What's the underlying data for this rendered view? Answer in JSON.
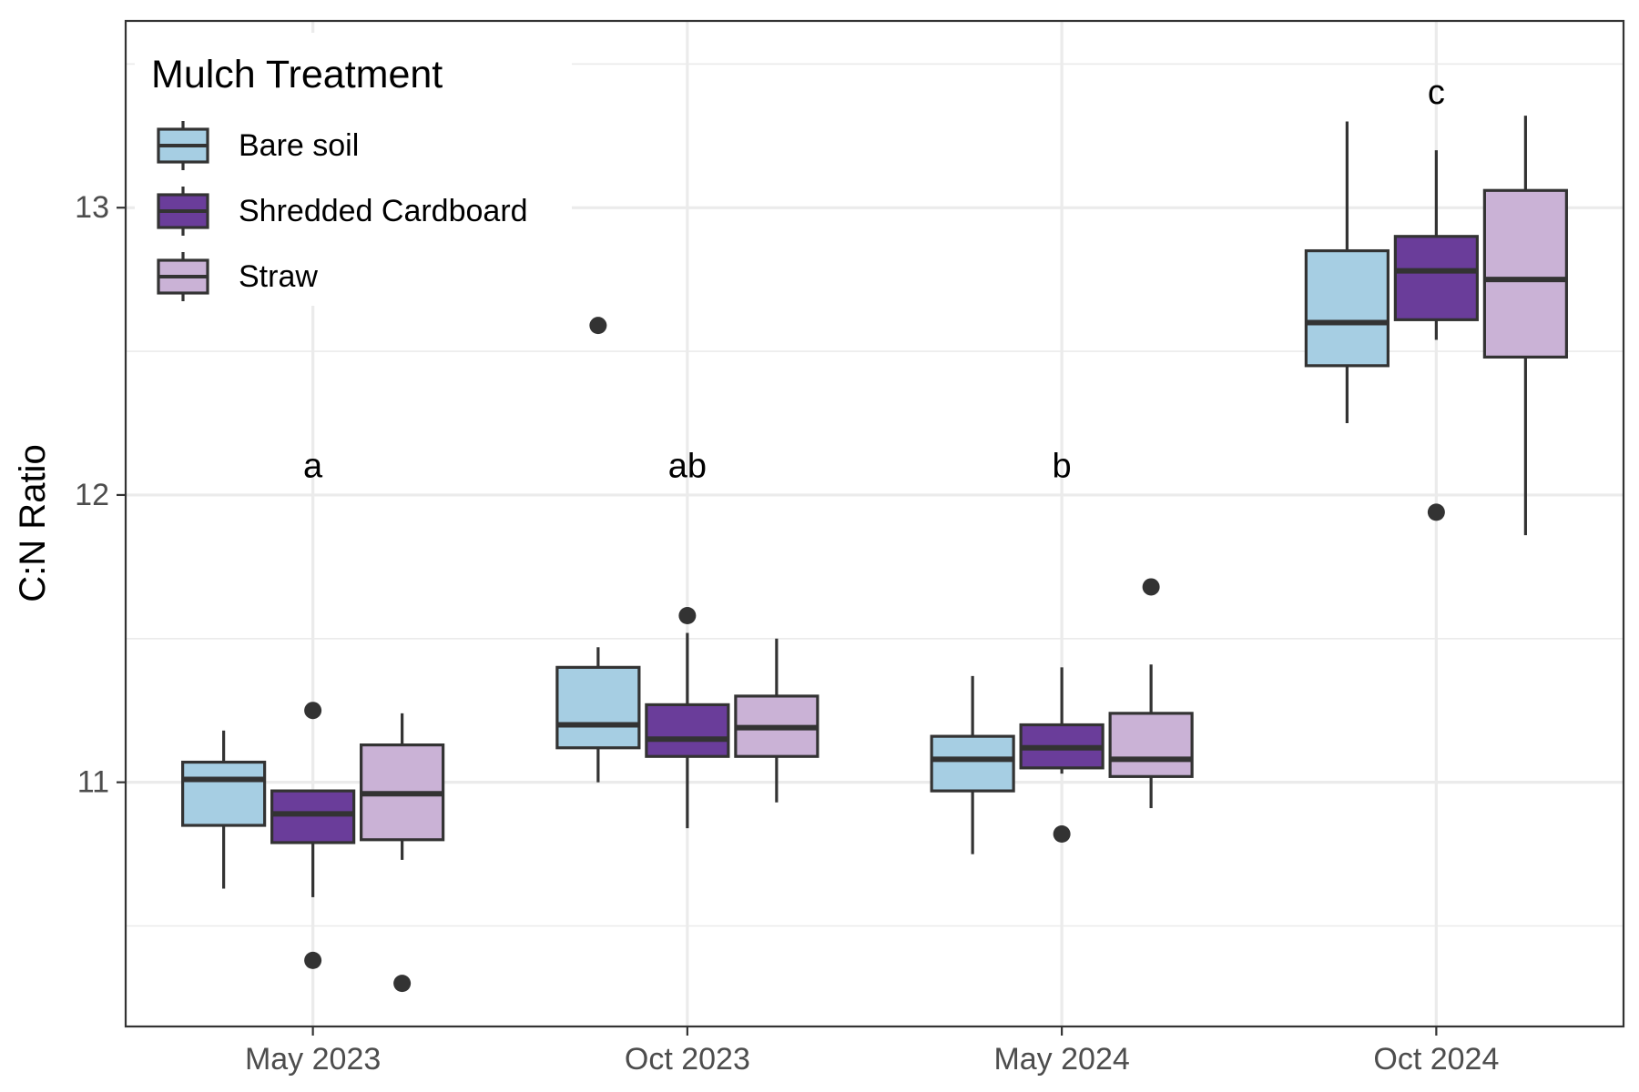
{
  "chart_data": {
    "type": "box",
    "title": "",
    "xlabel": "",
    "ylabel": "C:N Ratio",
    "categories": [
      "May 2023",
      "Oct 2023",
      "May 2024",
      "Oct 2024"
    ],
    "ylim": [
      10.15,
      13.65
    ],
    "yticks": [
      11,
      12,
      13
    ],
    "grid": true,
    "legend": {
      "title": "Mulch Treatment",
      "position": "top-left",
      "entries": [
        "Bare soil",
        "Shredded Cardboard",
        "Straw"
      ]
    },
    "colors": {
      "Bare soil": "#a6cee3",
      "Shredded Cardboard": "#6a3d9a",
      "Straw": "#cab2d6",
      "outline": "#333333"
    },
    "series": [
      {
        "name": "Bare soil",
        "boxes": [
          {
            "q1": 10.85,
            "median": 11.01,
            "q3": 11.07,
            "whisker_low": 10.63,
            "whisker_high": 11.18,
            "outliers": []
          },
          {
            "q1": 11.12,
            "median": 11.2,
            "q3": 11.4,
            "whisker_low": 11.0,
            "whisker_high": 11.47,
            "outliers": [
              12.59
            ]
          },
          {
            "q1": 10.97,
            "median": 11.08,
            "q3": 11.16,
            "whisker_low": 10.75,
            "whisker_high": 11.37,
            "outliers": []
          },
          {
            "q1": 12.45,
            "median": 12.6,
            "q3": 12.85,
            "whisker_low": 12.25,
            "whisker_high": 13.3,
            "outliers": []
          }
        ]
      },
      {
        "name": "Shredded Cardboard",
        "boxes": [
          {
            "q1": 10.79,
            "median": 10.89,
            "q3": 10.97,
            "whisker_low": 10.6,
            "whisker_high": 10.97,
            "outliers": [
              11.25,
              10.38
            ]
          },
          {
            "q1": 11.09,
            "median": 11.15,
            "q3": 11.27,
            "whisker_low": 10.84,
            "whisker_high": 11.52,
            "outliers": [
              11.58
            ]
          },
          {
            "q1": 11.05,
            "median": 11.12,
            "q3": 11.2,
            "whisker_low": 11.03,
            "whisker_high": 11.4,
            "outliers": [
              10.82
            ]
          },
          {
            "q1": 12.61,
            "median": 12.78,
            "q3": 12.9,
            "whisker_low": 12.54,
            "whisker_high": 13.2,
            "outliers": [
              11.94
            ]
          }
        ]
      },
      {
        "name": "Straw",
        "boxes": [
          {
            "q1": 10.8,
            "median": 10.96,
            "q3": 11.13,
            "whisker_low": 10.73,
            "whisker_high": 11.24,
            "outliers": [
              10.3
            ]
          },
          {
            "q1": 11.09,
            "median": 11.19,
            "q3": 11.3,
            "whisker_low": 10.93,
            "whisker_high": 11.5,
            "outliers": []
          },
          {
            "q1": 11.02,
            "median": 11.08,
            "q3": 11.24,
            "whisker_low": 10.91,
            "whisker_high": 11.41,
            "outliers": [
              11.68
            ]
          },
          {
            "q1": 12.48,
            "median": 12.75,
            "q3": 13.06,
            "whisker_low": 11.86,
            "whisker_high": 13.32,
            "outliers": []
          }
        ]
      }
    ],
    "annotations": [
      {
        "category": "May 2023",
        "text": "a",
        "y": 12.1
      },
      {
        "category": "Oct 2023",
        "text": "ab",
        "y": 12.1
      },
      {
        "category": "May 2024",
        "text": "b",
        "y": 12.1
      },
      {
        "category": "Oct 2024",
        "text": "c",
        "y": 13.4
      }
    ]
  }
}
